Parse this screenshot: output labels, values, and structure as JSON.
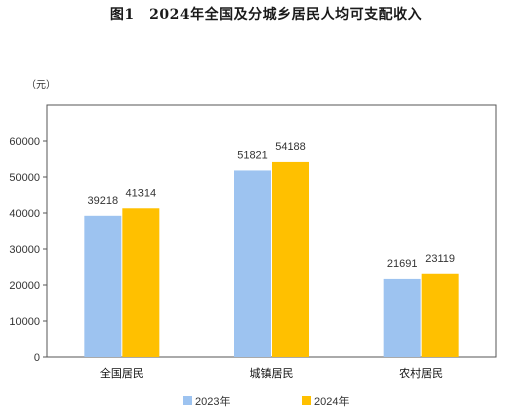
{
  "chart_data": {
    "type": "bar",
    "title": "图1　2024年全国及分城乡居民人均可支配收入",
    "unit_label": "（元）",
    "categories": [
      "全国居民",
      "城镇居民",
      "农村居民"
    ],
    "series": [
      {
        "name": "2023年",
        "values": [
          39218,
          51821,
          21691
        ],
        "color": "#9DC3F0"
      },
      {
        "name": "2024年",
        "values": [
          41314,
          54188,
          23119
        ],
        "color": "#FFC000"
      }
    ],
    "ylim": [
      0,
      70000
    ],
    "yticks": [
      0,
      10000,
      20000,
      30000,
      40000,
      50000,
      60000
    ],
    "grid": false,
    "legend_position": "bottom"
  }
}
